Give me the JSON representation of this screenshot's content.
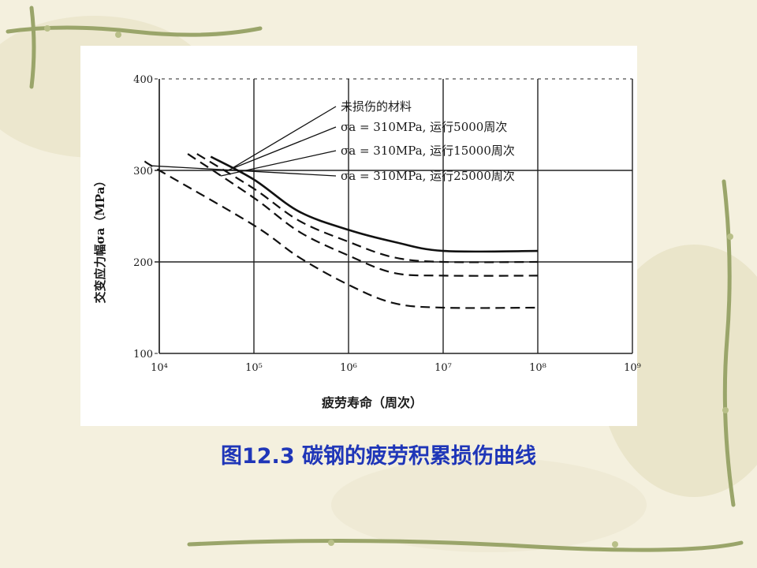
{
  "slide": {
    "caption": "图12.3 碳钢的疲劳积累损伤曲线",
    "colors": {
      "caption": "#1f36b8",
      "background": "#f4f0de",
      "vine": "#9aa56a"
    }
  },
  "chart_data": {
    "type": "line",
    "title": "",
    "xlabel": "疲劳寿命（周次）",
    "ylabel": "交变应力幅σa（MPa）",
    "x_scale": "log",
    "xlim": [
      10000,
      1000000000
    ],
    "ylim": [
      100,
      400
    ],
    "x_tick_labels": [
      "10⁴",
      "10⁵",
      "10⁶",
      "10⁷",
      "10⁸",
      "10⁹"
    ],
    "y_tick_labels": [
      "100",
      "200",
      "300",
      "400"
    ],
    "grid": true,
    "series": [
      {
        "name": "未损伤的材料",
        "style": "solid",
        "x": [
          35000,
          100000,
          300000,
          1000000,
          3000000,
          10000000,
          100000000
        ],
        "y": [
          315,
          290,
          255,
          235,
          222,
          212,
          212
        ]
      },
      {
        "name": "σa = 310MPa, 运行5000周次",
        "style": "dashed",
        "x": [
          25000,
          100000,
          300000,
          1000000,
          3000000,
          10000000,
          100000000
        ],
        "y": [
          318,
          280,
          245,
          222,
          205,
          200,
          200
        ]
      },
      {
        "name": "σa = 310MPa, 运行15000周次",
        "style": "dashed",
        "x": [
          20000,
          100000,
          300000,
          1000000,
          3000000,
          10000000,
          100000000
        ],
        "y": [
          318,
          270,
          233,
          207,
          188,
          185,
          185
        ]
      },
      {
        "name": "σa = 310MPa, 运行25000周次",
        "style": "dashed",
        "x": [
          7000,
          10000,
          100000,
          300000,
          1000000,
          3000000,
          10000000,
          100000000
        ],
        "y": [
          310,
          300,
          240,
          205,
          175,
          155,
          150,
          150
        ]
      }
    ]
  }
}
